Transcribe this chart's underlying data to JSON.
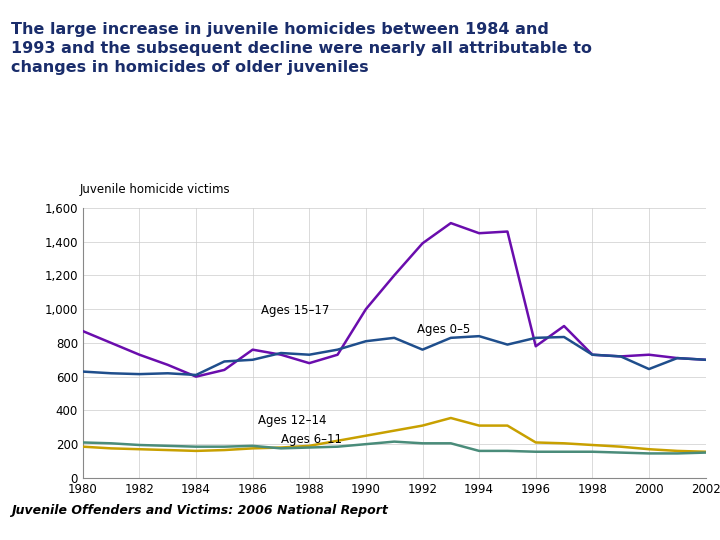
{
  "title_line1": "The large increase in juvenile homicides between 1984 and",
  "title_line2": "1993 and the subsequent decline were nearly all attributable to",
  "title_line3": "changes in homicides of older juveniles",
  "ylabel": "Juvenile homicide victims",
  "title_color": "#1a2d6b",
  "title_fontsize": 11.5,
  "years": [
    1980,
    1981,
    1982,
    1983,
    1984,
    1985,
    1986,
    1987,
    1988,
    1989,
    1990,
    1991,
    1992,
    1993,
    1994,
    1995,
    1996,
    1997,
    1998,
    1999,
    2000,
    2001,
    2002
  ],
  "ages_15_17": [
    870,
    800,
    730,
    670,
    600,
    640,
    760,
    730,
    680,
    730,
    1000,
    1200,
    1390,
    1510,
    1450,
    1460,
    780,
    900,
    730,
    720,
    730,
    710,
    700
  ],
  "ages_0_5": [
    630,
    620,
    615,
    620,
    610,
    690,
    700,
    740,
    730,
    760,
    810,
    830,
    760,
    830,
    840,
    790,
    830,
    835,
    730,
    720,
    645,
    710,
    700
  ],
  "ages_12_14": [
    185,
    175,
    170,
    165,
    160,
    165,
    175,
    180,
    190,
    220,
    250,
    280,
    310,
    355,
    310,
    310,
    210,
    205,
    195,
    185,
    170,
    160,
    155
  ],
  "ages_6_11": [
    210,
    205,
    195,
    190,
    185,
    185,
    190,
    175,
    180,
    185,
    200,
    215,
    205,
    205,
    160,
    160,
    155,
    155,
    155,
    150,
    145,
    145,
    150
  ],
  "color_15_17": "#6a0dad",
  "color_0_5": "#1f4e8c",
  "color_12_14": "#c8a000",
  "color_6_11": "#4a8c7a",
  "ylim": [
    0,
    1600
  ],
  "yticks": [
    0,
    200,
    400,
    600,
    800,
    1000,
    1200,
    1400,
    1600
  ],
  "footer_text": "Juvenile Offenders and Victims: 2006 National Report",
  "footer_line_color": "#4a9e7a",
  "background_color": "#ffffff"
}
